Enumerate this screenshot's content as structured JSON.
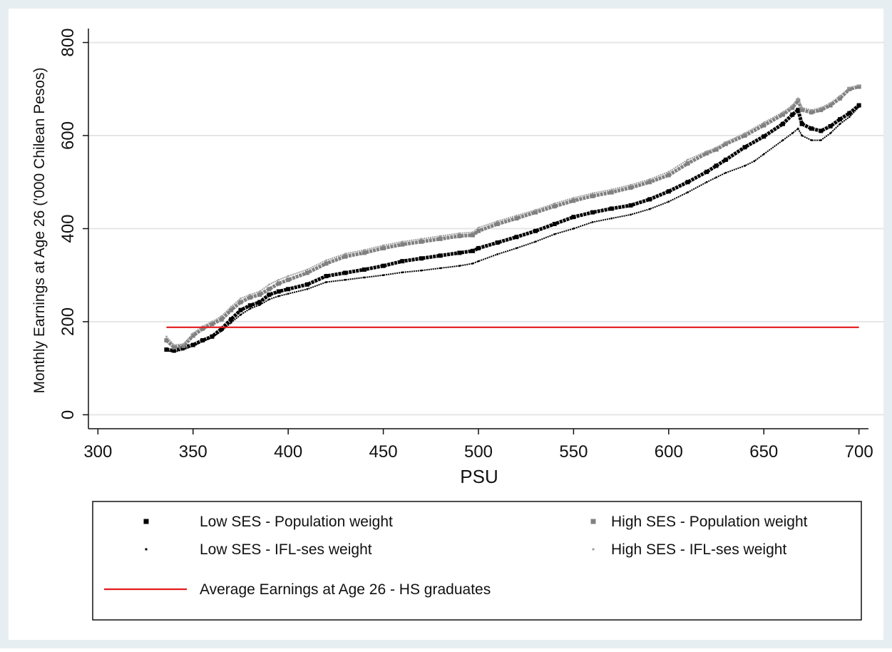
{
  "chart_data": {
    "type": "scatter",
    "title": "",
    "xlabel": "PSU",
    "ylabel": "Monthly Earnings at Age 26 ('000 Chilean Pesos)",
    "xlim": [
      295,
      705
    ],
    "ylim": [
      -30,
      830
    ],
    "x_ticks": [
      300,
      350,
      400,
      450,
      500,
      550,
      600,
      650,
      700
    ],
    "y_ticks": [
      0,
      200,
      400,
      600,
      800
    ],
    "grid": "horizontal",
    "legend_position": "bottom",
    "series": [
      {
        "name": "Low SES - Population weight",
        "color": "#000000",
        "marker": "square",
        "points": [
          [
            336,
            140
          ],
          [
            340,
            138
          ],
          [
            345,
            145
          ],
          [
            350,
            150
          ],
          [
            355,
            160
          ],
          [
            360,
            168
          ],
          [
            365,
            185
          ],
          [
            370,
            205
          ],
          [
            375,
            225
          ],
          [
            380,
            235
          ],
          [
            385,
            242
          ],
          [
            390,
            258
          ],
          [
            395,
            265
          ],
          [
            400,
            270
          ],
          [
            410,
            280
          ],
          [
            420,
            298
          ],
          [
            430,
            305
          ],
          [
            440,
            312
          ],
          [
            450,
            320
          ],
          [
            460,
            330
          ],
          [
            470,
            336
          ],
          [
            480,
            342
          ],
          [
            490,
            348
          ],
          [
            497,
            352
          ],
          [
            500,
            358
          ],
          [
            510,
            370
          ],
          [
            520,
            382
          ],
          [
            530,
            395
          ],
          [
            540,
            410
          ],
          [
            550,
            425
          ],
          [
            560,
            435
          ],
          [
            570,
            443
          ],
          [
            580,
            450
          ],
          [
            590,
            463
          ],
          [
            600,
            480
          ],
          [
            610,
            500
          ],
          [
            620,
            522
          ],
          [
            625,
            535
          ],
          [
            630,
            548
          ],
          [
            640,
            575
          ],
          [
            650,
            598
          ],
          [
            660,
            625
          ],
          [
            665,
            645
          ],
          [
            668,
            655
          ],
          [
            670,
            625
          ],
          [
            675,
            615
          ],
          [
            680,
            610
          ],
          [
            685,
            620
          ],
          [
            690,
            635
          ],
          [
            695,
            648
          ],
          [
            700,
            665
          ]
        ]
      },
      {
        "name": "Low SES - IFL-ses weight",
        "color": "#000000",
        "marker": "point",
        "points": [
          [
            336,
            138
          ],
          [
            340,
            135
          ],
          [
            345,
            140
          ],
          [
            350,
            148
          ],
          [
            355,
            158
          ],
          [
            360,
            166
          ],
          [
            365,
            180
          ],
          [
            370,
            198
          ],
          [
            375,
            215
          ],
          [
            380,
            228
          ],
          [
            385,
            236
          ],
          [
            390,
            248
          ],
          [
            395,
            255
          ],
          [
            400,
            260
          ],
          [
            410,
            270
          ],
          [
            420,
            285
          ],
          [
            430,
            290
          ],
          [
            440,
            295
          ],
          [
            450,
            300
          ],
          [
            460,
            306
          ],
          [
            470,
            310
          ],
          [
            480,
            315
          ],
          [
            490,
            320
          ],
          [
            497,
            325
          ],
          [
            500,
            330
          ],
          [
            510,
            345
          ],
          [
            520,
            358
          ],
          [
            530,
            372
          ],
          [
            540,
            388
          ],
          [
            550,
            400
          ],
          [
            560,
            414
          ],
          [
            570,
            422
          ],
          [
            580,
            430
          ],
          [
            590,
            442
          ],
          [
            600,
            458
          ],
          [
            610,
            478
          ],
          [
            620,
            500
          ],
          [
            625,
            510
          ],
          [
            630,
            520
          ],
          [
            640,
            535
          ],
          [
            645,
            545
          ],
          [
            650,
            560
          ],
          [
            660,
            590
          ],
          [
            665,
            605
          ],
          [
            668,
            615
          ],
          [
            670,
            600
          ],
          [
            675,
            590
          ],
          [
            680,
            590
          ],
          [
            685,
            605
          ],
          [
            690,
            625
          ],
          [
            695,
            640
          ],
          [
            700,
            662
          ]
        ]
      },
      {
        "name": "High SES - Population weight",
        "color": "#808080",
        "marker": "square",
        "points": [
          [
            336,
            160
          ],
          [
            340,
            145
          ],
          [
            345,
            148
          ],
          [
            350,
            170
          ],
          [
            355,
            185
          ],
          [
            360,
            195
          ],
          [
            365,
            205
          ],
          [
            370,
            225
          ],
          [
            375,
            242
          ],
          [
            380,
            252
          ],
          [
            385,
            258
          ],
          [
            390,
            270
          ],
          [
            395,
            282
          ],
          [
            400,
            290
          ],
          [
            410,
            305
          ],
          [
            420,
            325
          ],
          [
            430,
            340
          ],
          [
            440,
            348
          ],
          [
            450,
            358
          ],
          [
            460,
            366
          ],
          [
            470,
            372
          ],
          [
            480,
            378
          ],
          [
            490,
            384
          ],
          [
            497,
            386
          ],
          [
            500,
            395
          ],
          [
            510,
            410
          ],
          [
            520,
            422
          ],
          [
            530,
            435
          ],
          [
            540,
            448
          ],
          [
            550,
            460
          ],
          [
            560,
            470
          ],
          [
            570,
            478
          ],
          [
            580,
            488
          ],
          [
            590,
            500
          ],
          [
            600,
            515
          ],
          [
            610,
            540
          ],
          [
            620,
            562
          ],
          [
            625,
            570
          ],
          [
            630,
            582
          ],
          [
            640,
            600
          ],
          [
            650,
            622
          ],
          [
            660,
            645
          ],
          [
            665,
            660
          ],
          [
            668,
            675
          ],
          [
            670,
            655
          ],
          [
            675,
            650
          ],
          [
            680,
            655
          ],
          [
            685,
            665
          ],
          [
            690,
            680
          ],
          [
            695,
            700
          ],
          [
            700,
            705
          ]
        ]
      },
      {
        "name": "High SES - IFL-ses weight",
        "color": "#a0a0a0",
        "marker": "point",
        "points": [
          [
            336,
            168
          ],
          [
            340,
            150
          ],
          [
            345,
            152
          ],
          [
            350,
            175
          ],
          [
            355,
            190
          ],
          [
            360,
            200
          ],
          [
            365,
            212
          ],
          [
            370,
            232
          ],
          [
            375,
            250
          ],
          [
            380,
            258
          ],
          [
            385,
            265
          ],
          [
            390,
            280
          ],
          [
            395,
            290
          ],
          [
            400,
            298
          ],
          [
            410,
            312
          ],
          [
            420,
            332
          ],
          [
            430,
            346
          ],
          [
            440,
            354
          ],
          [
            450,
            364
          ],
          [
            460,
            372
          ],
          [
            470,
            378
          ],
          [
            480,
            384
          ],
          [
            490,
            390
          ],
          [
            497,
            392
          ],
          [
            500,
            402
          ],
          [
            510,
            416
          ],
          [
            520,
            428
          ],
          [
            530,
            440
          ],
          [
            540,
            454
          ],
          [
            550,
            466
          ],
          [
            560,
            476
          ],
          [
            570,
            484
          ],
          [
            580,
            494
          ],
          [
            590,
            506
          ],
          [
            600,
            522
          ],
          [
            610,
            548
          ],
          [
            620,
            566
          ],
          [
            625,
            574
          ],
          [
            630,
            586
          ],
          [
            640,
            605
          ],
          [
            650,
            628
          ],
          [
            660,
            650
          ],
          [
            665,
            665
          ],
          [
            668,
            680
          ],
          [
            670,
            660
          ],
          [
            675,
            655
          ],
          [
            680,
            660
          ],
          [
            685,
            670
          ],
          [
            690,
            685
          ],
          [
            695,
            703
          ],
          [
            700,
            708
          ]
        ]
      },
      {
        "name": "Average Earnings at Age 26 - HS graduates",
        "color": "#e41a1c",
        "marker": "line",
        "points": [
          [
            336,
            188
          ],
          [
            700,
            188
          ]
        ]
      }
    ]
  }
}
